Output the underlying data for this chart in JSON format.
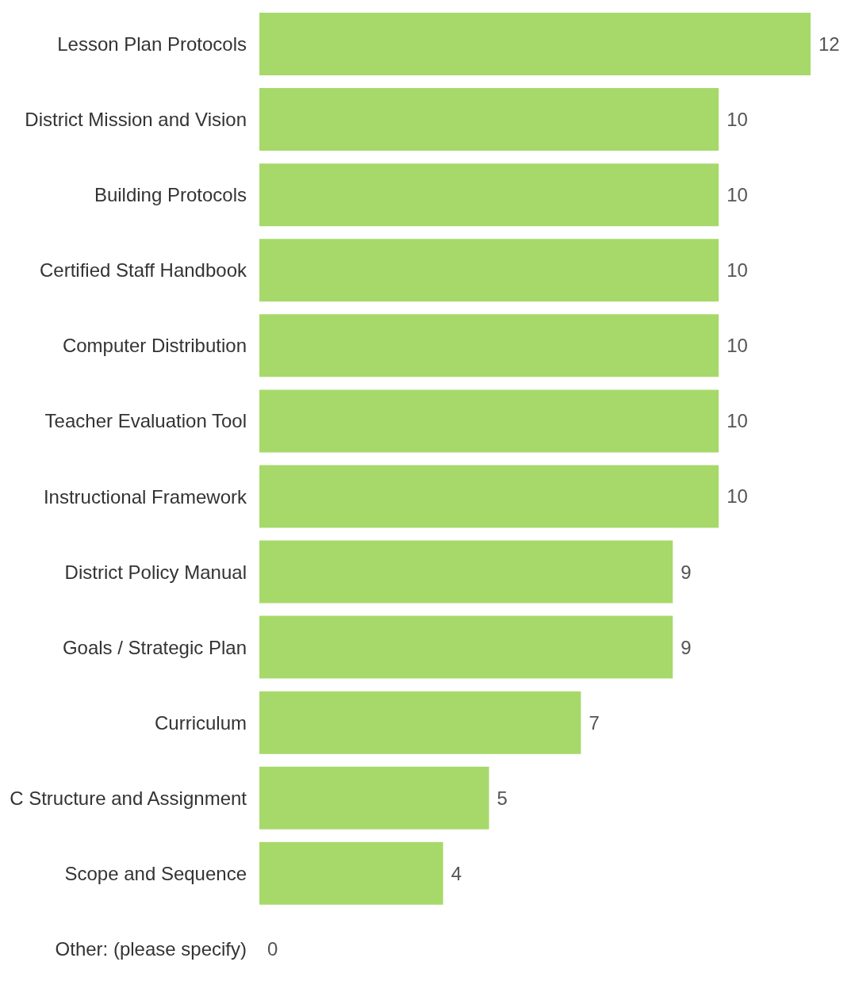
{
  "chart_data": {
    "type": "bar",
    "orientation": "horizontal",
    "categories": [
      "Lesson Plan Protocols",
      "District Mission and Vision",
      "Building Protocols",
      "Certified Staff Handbook",
      "Computer Distribution",
      "Teacher Evaluation Tool",
      "Instructional Framework",
      "District Policy Manual",
      "Goals / Strategic Plan",
      "Curriculum",
      "C Structure and Assignment",
      "Scope and Sequence",
      "Other: (please specify)"
    ],
    "values": [
      12,
      10,
      10,
      10,
      10,
      10,
      10,
      9,
      9,
      7,
      5,
      4,
      0
    ],
    "color": "#a6d96a",
    "data_labels": true,
    "grid": false,
    "legend": false
  }
}
